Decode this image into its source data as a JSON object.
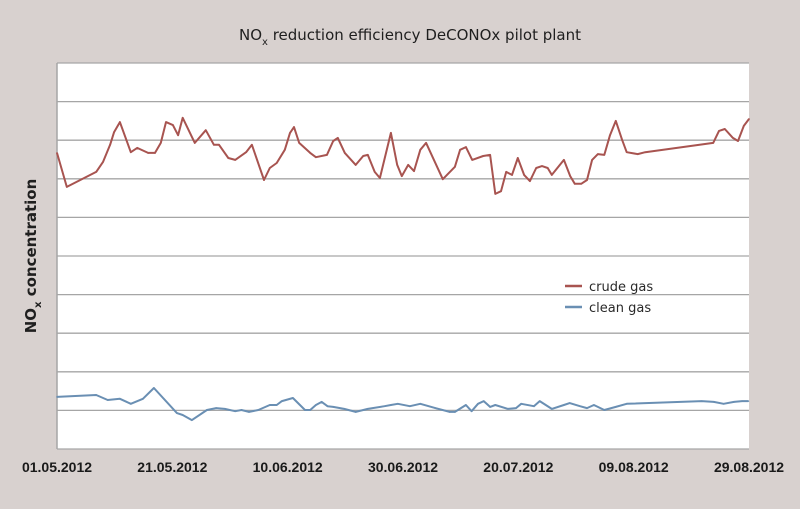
{
  "chart_data": {
    "type": "line",
    "title_main": "NO",
    "title_sub": "x",
    "title_rest": " reduction efficiency DeCONOx pilot plant",
    "title": "NOx reduction efficiency DeCONOx pilot plant",
    "xlabel": "",
    "ylabel_main": "NO",
    "ylabel_sub": "x",
    "ylabel_rest": " concentration",
    "ylabel": "NOx concentration",
    "x_unit": "days since 01.05.2012",
    "xlim": [
      0,
      120
    ],
    "ylim": [
      0,
      100
    ],
    "y_note": "relative scale (no numeric y tick labels shown)",
    "y_gridlines": [
      0,
      10,
      20,
      30,
      40,
      50,
      60,
      70,
      80,
      90,
      100
    ],
    "grid": true,
    "x_ticks": [
      {
        "day": 0,
        "label": "01.05.2012"
      },
      {
        "day": 20,
        "label": "21.05.2012"
      },
      {
        "day": 40,
        "label": "10.06.2012"
      },
      {
        "day": 60,
        "label": "30.06.2012"
      },
      {
        "day": 80,
        "label": "20.07.2012"
      },
      {
        "day": 100,
        "label": "09.08.2012"
      },
      {
        "day": 120,
        "label": "29.08.2012"
      }
    ],
    "legend_position": "center-right",
    "series": [
      {
        "name": "crude gas",
        "color": "#a85450",
        "x": [
          0,
          1.7,
          6.8,
          8.0,
          9.2,
          9.9,
          10.9,
          12.8,
          13.9,
          15.8,
          17.0,
          18.0,
          18.9,
          20.1,
          21.0,
          21.8,
          23.9,
          25.8,
          27.2,
          28.1,
          29.7,
          30.9,
          32.8,
          33.8,
          35.9,
          36.9,
          38.1,
          39.5,
          40.4,
          41.1,
          42.0,
          43.9,
          44.9,
          46.8,
          47.9,
          48.7,
          49.9,
          51.8,
          53.1,
          53.9,
          55.1,
          56.0,
          57.9,
          59.0,
          59.8,
          60.9,
          61.9,
          63.0,
          64.0,
          66.9,
          69.0,
          69.9,
          70.9,
          72.0,
          73.9,
          75.1,
          76.0,
          77.0,
          77.9,
          78.9,
          79.9,
          81.0,
          82.0,
          83.1,
          84.1,
          85.1,
          85.8,
          87.9,
          89.0,
          89.8,
          90.9,
          91.9,
          92.8,
          93.8,
          94.9,
          95.9,
          96.9,
          98.0,
          98.8,
          100.7,
          102.0,
          113.8,
          114.8,
          115.8,
          117.2,
          118.1,
          119.1,
          120.0
        ],
        "values": [
          76.7,
          67.9,
          71.8,
          74.4,
          78.8,
          82.1,
          84.7,
          76.9,
          78.0,
          76.7,
          76.7,
          79.3,
          84.7,
          83.9,
          81.3,
          85.8,
          79.3,
          82.6,
          78.8,
          78.8,
          75.4,
          74.9,
          76.9,
          78.8,
          69.7,
          72.8,
          74.1,
          77.5,
          81.9,
          83.4,
          79.3,
          76.7,
          75.6,
          76.2,
          79.8,
          80.6,
          76.7,
          73.6,
          75.9,
          76.2,
          71.8,
          70.2,
          81.9,
          73.6,
          70.7,
          73.6,
          72.0,
          77.5,
          79.3,
          69.9,
          73.1,
          77.5,
          78.2,
          74.9,
          75.9,
          76.2,
          66.1,
          66.8,
          71.8,
          71.0,
          75.4,
          71.0,
          69.4,
          72.8,
          73.3,
          72.8,
          71.0,
          74.9,
          70.7,
          68.7,
          68.7,
          69.7,
          74.9,
          76.4,
          76.2,
          81.3,
          85.0,
          80.1,
          76.9,
          76.4,
          76.9,
          79.3,
          82.4,
          82.9,
          80.6,
          79.8,
          83.7,
          85.5
        ]
      },
      {
        "name": "clean gas",
        "color": "#6a8fb3",
        "x": [
          0,
          6.8,
          8.8,
          10.9,
          12.8,
          14.9,
          16.8,
          20.8,
          21.8,
          23.4,
          26.0,
          27.6,
          29.1,
          30.9,
          32.0,
          33.3,
          34.9,
          36.9,
          38.1,
          39.0,
          40.9,
          43.0,
          43.9,
          44.9,
          45.9,
          46.9,
          47.9,
          49.8,
          51.8,
          53.9,
          56.8,
          57.9,
          59.1,
          61.2,
          63.0,
          65.6,
          68.1,
          69.0,
          70.9,
          71.9,
          73.0,
          74.0,
          75.1,
          76.0,
          78.2,
          79.6,
          80.5,
          82.7,
          83.7,
          85.8,
          87.9,
          88.9,
          90.7,
          91.9,
          93.1,
          94.9,
          96.9,
          98.8,
          111.8,
          113.9,
          115.6,
          117.4,
          118.8,
          119.9
        ],
        "values": [
          13.5,
          14.0,
          12.7,
          13.0,
          11.7,
          13.0,
          15.8,
          9.3,
          8.8,
          7.5,
          10.1,
          10.6,
          10.4,
          9.8,
          10.1,
          9.6,
          10.1,
          11.4,
          11.4,
          12.4,
          13.2,
          10.1,
          10.1,
          11.4,
          12.2,
          11.1,
          10.9,
          10.4,
          9.6,
          10.4,
          11.1,
          11.4,
          11.7,
          11.1,
          11.7,
          10.6,
          9.6,
          9.6,
          11.4,
          9.8,
          11.7,
          12.4,
          10.9,
          11.4,
          10.4,
          10.6,
          11.7,
          11.1,
          12.4,
          10.4,
          11.4,
          11.9,
          11.1,
          10.6,
          11.4,
          10.1,
          10.9,
          11.7,
          12.4,
          12.2,
          11.7,
          12.2,
          12.4,
          12.4
        ]
      }
    ]
  },
  "legend": {
    "items": [
      {
        "label": "crude gas",
        "color": "#a85450"
      },
      {
        "label": "clean gas",
        "color": "#6a8fb3"
      }
    ]
  },
  "colors": {
    "background": "#d8d1cf",
    "plot_background": "#ffffff",
    "gridline": "#a6a6a6"
  }
}
